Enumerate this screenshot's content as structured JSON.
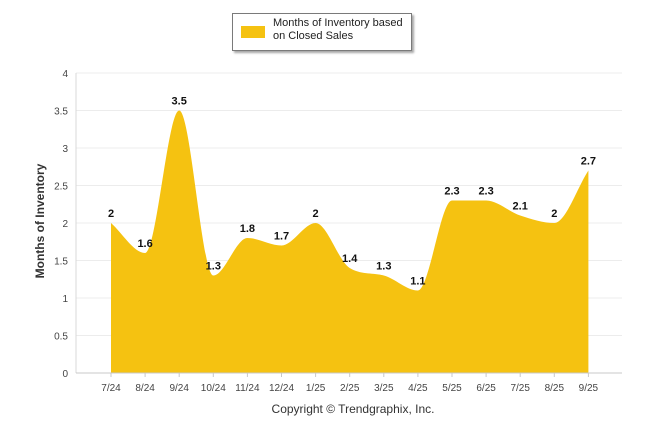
{
  "chart_data": {
    "type": "area",
    "title": "",
    "xlabel": "",
    "ylabel": "Months of Inventory",
    "categories": [
      "7/24",
      "8/24",
      "9/24",
      "10/24",
      "11/24",
      "12/24",
      "1/25",
      "2/25",
      "3/25",
      "4/25",
      "5/25",
      "6/25",
      "7/25",
      "8/25",
      "9/25"
    ],
    "series": [
      {
        "name": "Months of Inventory based on Closed Sales",
        "values": [
          2,
          1.6,
          3.5,
          1.3,
          1.8,
          1.7,
          2,
          1.4,
          1.3,
          1.1,
          2.3,
          2.3,
          2.1,
          2,
          2.7
        ],
        "color": "#f5c211"
      }
    ],
    "data_labels": [
      "2",
      "1.6",
      "3.5",
      "1.3",
      "1.8",
      "1.7",
      "2",
      "1.4",
      "1.3",
      "1.1",
      "2.3",
      "2.3",
      "2.1",
      "2",
      "2.7"
    ],
    "ylim": [
      0,
      4
    ],
    "yticks": [
      0,
      0.5,
      1,
      1.5,
      2,
      2.5,
      3,
      3.5,
      4
    ],
    "ytick_labels": [
      "0",
      "0.5",
      "1",
      "1.5",
      "2",
      "2.5",
      "3",
      "3.5",
      "4"
    ],
    "grid": true,
    "legend": "top-center"
  },
  "legend": {
    "label": "Months of Inventory based on Closed Sales"
  },
  "footer": {
    "copyright": "Copyright © Trendgraphix, Inc."
  }
}
